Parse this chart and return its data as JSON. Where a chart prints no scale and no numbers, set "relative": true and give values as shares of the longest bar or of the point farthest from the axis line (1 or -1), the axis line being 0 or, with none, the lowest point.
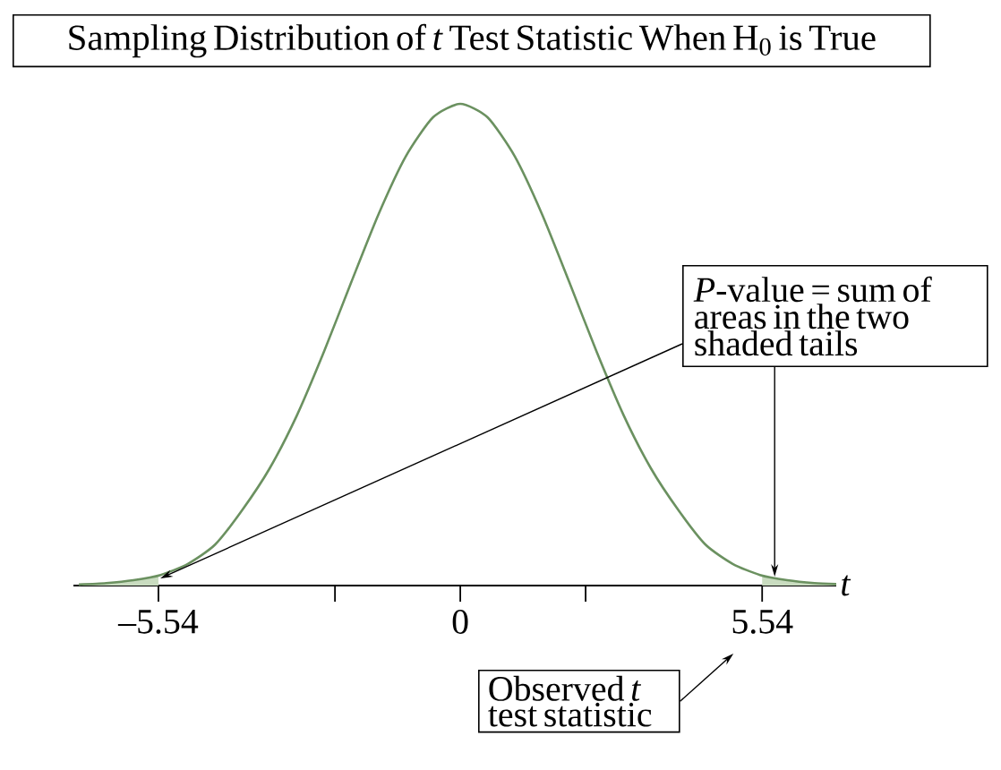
{
  "chart_data": {
    "type": "line",
    "title": "Sampling Distribution of *t* Test Statistic When H$_{0}$ is True",
    "xlabel": "t",
    "relative": true,
    "xlim": [
      -7.1,
      6.9
    ],
    "xticks": [
      {
        "value": -5.54,
        "label": "–5.54"
      },
      {
        "value": -2.3,
        "label": null
      },
      0,
      {
        "value": 2.3,
        "label": null
      },
      5.54
    ],
    "series": [
      {
        "type": "area",
        "color": "#c9dcc0",
        "x": [
          -7,
          -6.5,
          -6,
          -5.54
        ],
        "values": [
          0.002,
          0.005,
          0.011,
          0.021
        ]
      },
      {
        "type": "area",
        "color": "#c9dcc0",
        "x": [
          5.54,
          6,
          6.5,
          6.9
        ],
        "values": [
          0.021,
          0.011,
          0.005,
          0.003
        ]
      },
      {
        "color": "#6b9160",
        "x": [
          -7,
          -6.5,
          -6,
          -5.5,
          -5,
          -4.5,
          -4,
          -3.5,
          -3,
          -2.5,
          -2,
          -1.5,
          -1,
          -0.5,
          0,
          0.5,
          1,
          1.5,
          2,
          2.5,
          3,
          3.5,
          4,
          4.5,
          5,
          5.5,
          6,
          6.5,
          6.9
        ],
        "values": [
          0.002,
          0.005,
          0.011,
          0.022,
          0.045,
          0.085,
          0.157,
          0.243,
          0.353,
          0.486,
          0.63,
          0.771,
          0.891,
          0.972,
          1,
          0.972,
          0.891,
          0.771,
          0.63,
          0.486,
          0.353,
          0.243,
          0.157,
          0.085,
          0.045,
          0.022,
          0.011,
          0.005,
          0.003
        ]
      }
    ],
    "annotations": [
      "*P*-value = sum of areas in the two shaded tails",
      "Observed *t* test statistic"
    ]
  }
}
